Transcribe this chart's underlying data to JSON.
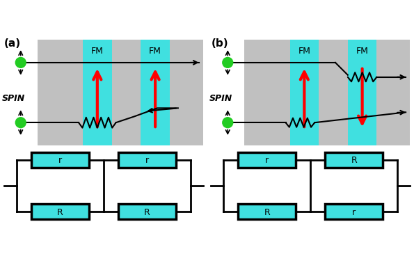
{
  "bg_color": "#c0c0c0",
  "fm_color": "#40e0e0",
  "box_bg": "#40e0e0",
  "panel_a_label": "(a)",
  "panel_b_label": "(b)",
  "spin_label": "SPIN",
  "fm_label": "FM",
  "r_label": "r",
  "R_label": "R",
  "green_color": "#22cc22",
  "white": "#ffffff"
}
